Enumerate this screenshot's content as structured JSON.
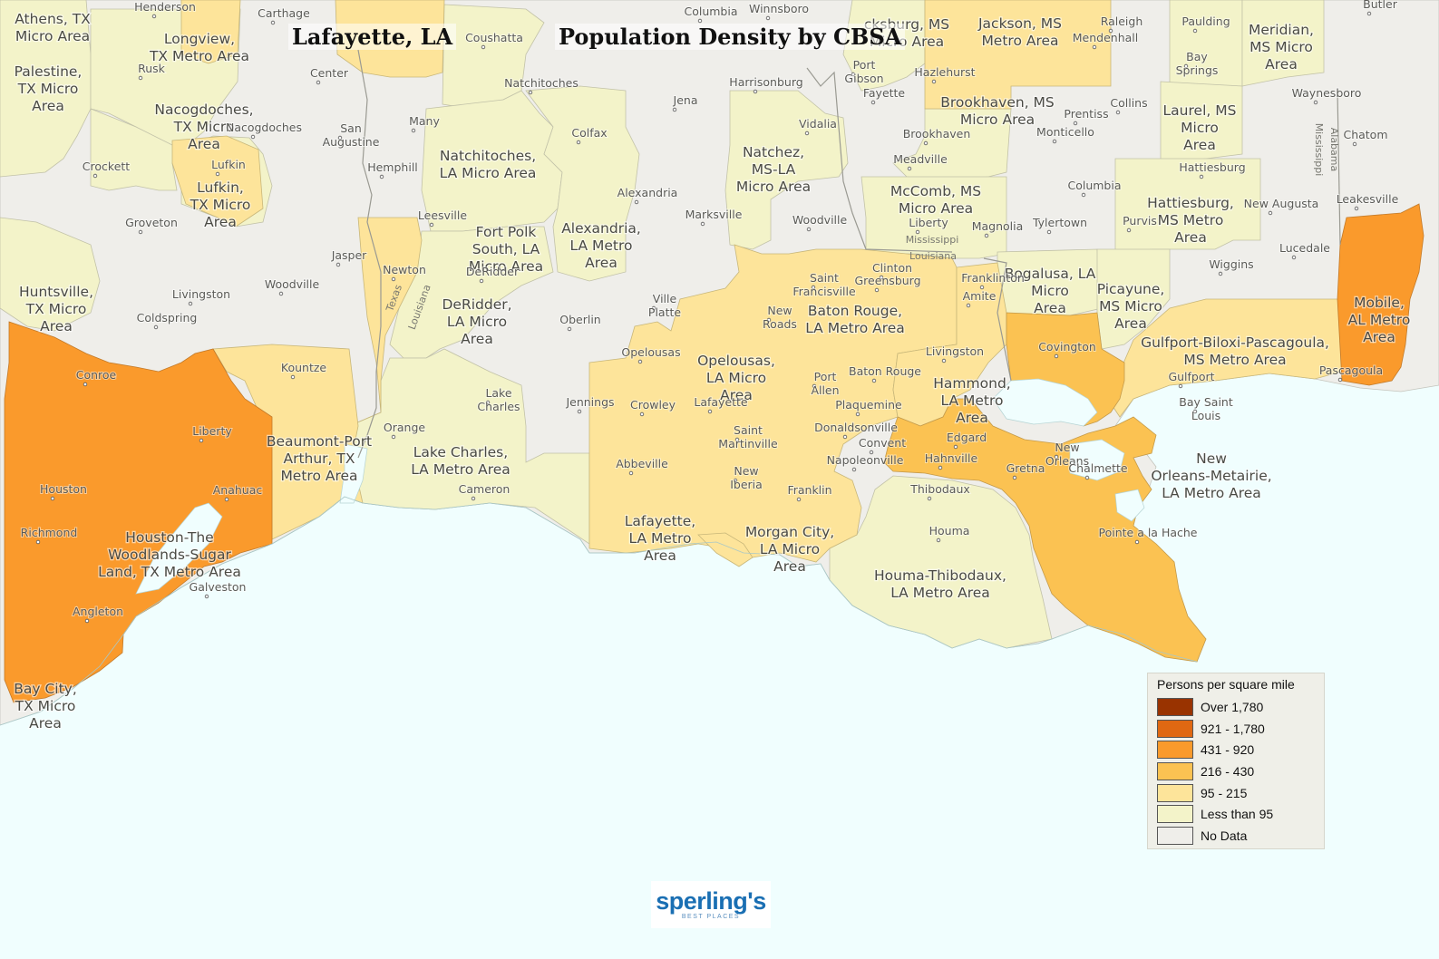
{
  "map": {
    "title_place": "Lafayette, LA",
    "title_topic": "Population Density by CBSA"
  },
  "legend": {
    "title": "Persons per square mile",
    "items": [
      {
        "label": "Over 1,780",
        "color": "#993300"
      },
      {
        "label": "921 - 1,780",
        "color": "#e06812"
      },
      {
        "label": "431 - 920",
        "color": "#fa9a2c"
      },
      {
        "label": "216 - 430",
        "color": "#fbc252"
      },
      {
        "label": "95 - 215",
        "color": "#fde49a"
      },
      {
        "label": "Less than 95",
        "color": "#f3f3c9"
      },
      {
        "label": "No Data",
        "color": "#efeeea"
      }
    ]
  },
  "colors": {
    "water": "#f0fefe",
    "no_data": "#efeeea",
    "boundary": "#b8b8b0"
  },
  "cbsa_labels": [
    {
      "name": "cbsa-athens",
      "text": "Athens, TX\nMicro Area"
    },
    {
      "name": "cbsa-longview",
      "text": "Longview,\nTX Metro Area"
    },
    {
      "name": "cbsa-palestine",
      "text": "Palestine,\nTX Micro\nArea"
    },
    {
      "name": "cbsa-nacogdoches",
      "text": "Nacogdoches,\nTX Micro\nArea"
    },
    {
      "name": "cbsa-lufkin",
      "text": "Lufkin,\nTX Micro\nArea"
    },
    {
      "name": "cbsa-huntsville",
      "text": "Huntsville,\nTX Micro\nArea"
    },
    {
      "name": "cbsa-natchitoches",
      "text": "Natchitoches,\nLA Micro Area"
    },
    {
      "name": "cbsa-fort-polk",
      "text": "Fort Polk\nSouth, LA\nMicro Area"
    },
    {
      "name": "cbsa-alexandria",
      "text": "Alexandria,\nLA Metro\nArea"
    },
    {
      "name": "cbsa-deridder",
      "text": "DeRidder,\nLA Micro\nArea"
    },
    {
      "name": "cbsa-natchez",
      "text": "Natchez,\nMS-LA\nMicro Area"
    },
    {
      "name": "cbsa-vicksburg",
      "text": "cksburg, MS\nMicro Area"
    },
    {
      "name": "cbsa-jackson",
      "text": "Jackson, MS\nMetro Area"
    },
    {
      "name": "cbsa-meridian",
      "text": "Meridian,\nMS Micro\nArea"
    },
    {
      "name": "cbsa-brookhaven",
      "text": "Brookhaven, MS\nMicro Area"
    },
    {
      "name": "cbsa-laurel",
      "text": "Laurel, MS\nMicro\nArea"
    },
    {
      "name": "cbsa-mccomb",
      "text": "McComb, MS\nMicro Area"
    },
    {
      "name": "cbsa-hattiesburg",
      "text": "Hattiesburg,\nMS Metro\nArea"
    },
    {
      "name": "cbsa-bogalusa",
      "text": "Bogalusa, LA\nMicro\nArea"
    },
    {
      "name": "cbsa-picayune",
      "text": "Picayune,\nMS Micro\nArea"
    },
    {
      "name": "cbsa-mobile",
      "text": "Mobile,\nAL Metro\nArea"
    },
    {
      "name": "cbsa-baton-rouge",
      "text": "Baton Rouge,\nLA Metro Area"
    },
    {
      "name": "cbsa-opelousas",
      "text": "Opelousas,\nLA Micro\nArea"
    },
    {
      "name": "cbsa-hammond",
      "text": "Hammond,\nLA Metro\nArea"
    },
    {
      "name": "cbsa-gulfport",
      "text": "Gulfport-Biloxi-Pascagoula,\nMS Metro Area"
    },
    {
      "name": "cbsa-beaumont",
      "text": "Beaumont-Port\nArthur, TX\nMetro Area"
    },
    {
      "name": "cbsa-lake-charles",
      "text": "Lake Charles,\nLA Metro Area"
    },
    {
      "name": "cbsa-new-orleans",
      "text": "New\nOrleans-Metairie,\nLA Metro Area"
    },
    {
      "name": "cbsa-lafayette",
      "text": "Lafayette,\nLA Metro\nArea"
    },
    {
      "name": "cbsa-morgan-city",
      "text": "Morgan City,\nLA Micro\nArea"
    },
    {
      "name": "cbsa-houston",
      "text": "Houston-The\nWoodlands-Sugar\nLand, TX Metro Area"
    },
    {
      "name": "cbsa-houma",
      "text": "Houma-Thibodaux,\nLA Metro Area"
    },
    {
      "name": "cbsa-bay-city",
      "text": "Bay City,\nTX Micro\nArea"
    }
  ],
  "cities": [
    {
      "name": "Henderson"
    },
    {
      "name": "Carthage"
    },
    {
      "name": "Coushatta"
    },
    {
      "name": "Columbia"
    },
    {
      "name": "Winnsboro"
    },
    {
      "name": "Raleigh"
    },
    {
      "name": "Paulding"
    },
    {
      "name": "Butler"
    },
    {
      "name": "Mendenhall"
    },
    {
      "name": "Bay\nSprings"
    },
    {
      "name": "Rusk"
    },
    {
      "name": "Center"
    },
    {
      "name": "Port\nGibson"
    },
    {
      "name": "Hazlehurst"
    },
    {
      "name": "Natchitoches"
    },
    {
      "name": "Harrisonburg"
    },
    {
      "name": "Fayette"
    },
    {
      "name": "Waynesboro"
    },
    {
      "name": "Nacogdoches"
    },
    {
      "name": "San\nAugustine"
    },
    {
      "name": "Many"
    },
    {
      "name": "Jena"
    },
    {
      "name": "Collins"
    },
    {
      "name": "Prentiss"
    },
    {
      "name": "Vidalia"
    },
    {
      "name": "Colfax"
    },
    {
      "name": "Brookhaven"
    },
    {
      "name": "Monticello"
    },
    {
      "name": "Chatom"
    },
    {
      "name": "Crockett"
    },
    {
      "name": "Lufkin"
    },
    {
      "name": "Hemphill"
    },
    {
      "name": "Meadville"
    },
    {
      "name": "Hattiesburg"
    },
    {
      "name": "Columbia"
    },
    {
      "name": "Alexandria"
    },
    {
      "name": "New Augusta"
    },
    {
      "name": "Leakesville"
    },
    {
      "name": "Groveton"
    },
    {
      "name": "Leesville"
    },
    {
      "name": "Marksville"
    },
    {
      "name": "Woodville"
    },
    {
      "name": "Liberty"
    },
    {
      "name": "Magnolia"
    },
    {
      "name": "Tylertown"
    },
    {
      "name": "Purvis"
    },
    {
      "name": "Lucedale"
    },
    {
      "name": "Jasper"
    },
    {
      "name": "Newton"
    },
    {
      "name": "DeRidder"
    },
    {
      "name": "Saint\nFrancisville"
    },
    {
      "name": "Clinton"
    },
    {
      "name": "Greensburg"
    },
    {
      "name": "Franklinton"
    },
    {
      "name": "Wiggins"
    },
    {
      "name": "Woodville"
    },
    {
      "name": "Livingston"
    },
    {
      "name": "Amite"
    },
    {
      "name": "Ville\nPlatte"
    },
    {
      "name": "New\nRoads"
    },
    {
      "name": "Coldspring"
    },
    {
      "name": "Oberlin"
    },
    {
      "name": "Opelousas"
    },
    {
      "name": "Livingston"
    },
    {
      "name": "Covington"
    },
    {
      "name": "Kountze"
    },
    {
      "name": "Port\nAllen"
    },
    {
      "name": "Baton Rouge"
    },
    {
      "name": "Gulfport"
    },
    {
      "name": "Pascagoula"
    },
    {
      "name": "Conroe"
    },
    {
      "name": "Lake\nCharles"
    },
    {
      "name": "Jennings"
    },
    {
      "name": "Crowley"
    },
    {
      "name": "Lafayette"
    },
    {
      "name": "Plaquemine"
    },
    {
      "name": "Bay Saint\nLouis"
    },
    {
      "name": "Saint\nMartinville"
    },
    {
      "name": "Donaldsonville"
    },
    {
      "name": "Orange"
    },
    {
      "name": "Liberty"
    },
    {
      "name": "Convent"
    },
    {
      "name": "Edgard"
    },
    {
      "name": "New\nOrleans"
    },
    {
      "name": "Abbeville"
    },
    {
      "name": "Napoleonville"
    },
    {
      "name": "Hahnville"
    },
    {
      "name": "Gretna"
    },
    {
      "name": "Chalmette"
    },
    {
      "name": "New\nIberia"
    },
    {
      "name": "Houston"
    },
    {
      "name": "Cameron"
    },
    {
      "name": "Anahuac"
    },
    {
      "name": "Franklin"
    },
    {
      "name": "Thibodaux"
    },
    {
      "name": "Richmond"
    },
    {
      "name": "Houma"
    },
    {
      "name": "Pointe a la Hache"
    },
    {
      "name": "Galveston"
    },
    {
      "name": "Angleton"
    }
  ],
  "state_labels": [
    {
      "name": "Texas"
    },
    {
      "name": "Louisiana"
    },
    {
      "name": "Mississippi"
    },
    {
      "name": "Louisiana"
    },
    {
      "name": "Mississippi"
    },
    {
      "name": "Alabama"
    }
  ],
  "logo": {
    "text": "sperling's",
    "subtext": "BEST PLACES"
  }
}
